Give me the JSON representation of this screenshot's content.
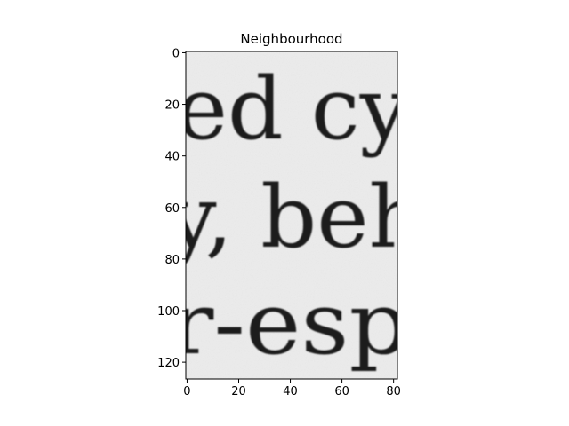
{
  "chart_data": {
    "type": "image",
    "title": "Neighbourhood",
    "xlabel": "",
    "ylabel": "",
    "xlim": [
      -0.5,
      81.5
    ],
    "ylim": [
      126.5,
      -0.5
    ],
    "x_ticks": [
      0,
      20,
      40,
      60,
      80
    ],
    "y_ticks": [
      0,
      20,
      40,
      60,
      80,
      100,
      120
    ],
    "colormap": "gray",
    "grid": false,
    "image_text_lines": [
      "ed cy",
      "y, beh",
      "r-esp"
    ]
  }
}
